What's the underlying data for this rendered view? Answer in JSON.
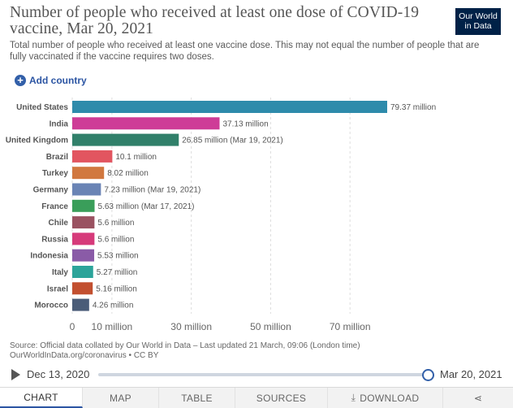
{
  "header": {
    "title": "Number of people who received at least one dose of COVID-19 vaccine, Mar 20, 2021",
    "subtitle": "Total number of people who received at least one vaccine dose. This may not equal the number of people that are fully vaccinated if the vaccine requires two doses.",
    "logo_line1": "Our World",
    "logo_line2": "in Data"
  },
  "controls": {
    "add_country_label": "Add country",
    "add_icon": "plus-circle-icon"
  },
  "chart_data": {
    "type": "bar",
    "orientation": "horizontal",
    "categories": [
      "United States",
      "India",
      "United Kingdom",
      "Brazil",
      "Turkey",
      "Germany",
      "France",
      "Chile",
      "Russia",
      "Indonesia",
      "Italy",
      "Israel",
      "Morocco"
    ],
    "values": [
      79.37,
      37.13,
      26.85,
      10.1,
      8.02,
      7.23,
      5.63,
      5.6,
      5.6,
      5.53,
      5.27,
      5.16,
      4.26
    ],
    "labels": [
      "79.37 million",
      "37.13 million",
      "26.85 million (Mar 19, 2021)",
      "10.1 million",
      "8.02 million",
      "7.23 million (Mar 19, 2021)",
      "5.63 million (Mar 17, 2021)",
      "5.6 million",
      "5.6 million",
      "5.53 million",
      "5.27 million",
      "5.16 million",
      "4.26 million"
    ],
    "colors": [
      "#2e8bab",
      "#ce3c97",
      "#31806a",
      "#e25560",
      "#d1783f",
      "#6a84b5",
      "#3a9e5a",
      "#9a5261",
      "#d63a7a",
      "#8a5ba7",
      "#2ca49a",
      "#c25030",
      "#4a5c78"
    ],
    "xticks": [
      "0",
      "10 million",
      "30 million",
      "50 million",
      "70 million"
    ],
    "xtick_values": [
      0,
      10,
      30,
      50,
      70
    ],
    "xlim": [
      0,
      80
    ],
    "grid": true
  },
  "footer": {
    "source_line1": "Source: Official data collated by Our World in Data – Last updated 21 March, 09:06 (London time)",
    "source_line2": "OurWorldInData.org/coronavirus • CC BY"
  },
  "timeline": {
    "start_date": "Dec 13, 2020",
    "end_date": "Mar 20, 2021"
  },
  "tabs": [
    {
      "label": "CHART",
      "active": true
    },
    {
      "label": "MAP",
      "active": false
    },
    {
      "label": "TABLE",
      "active": false
    },
    {
      "label": "SOURCES",
      "active": false
    },
    {
      "label": "DOWNLOAD",
      "active": false
    }
  ]
}
